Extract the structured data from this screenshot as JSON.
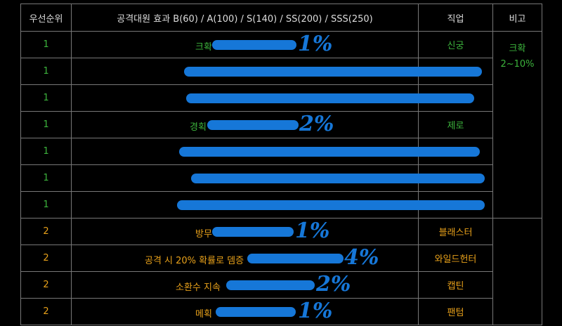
{
  "colors": {
    "background": "#000000",
    "grid": "#777777",
    "header_text": "#dddddd",
    "green": "#3cb33c",
    "orange": "#e8a11a",
    "redaction": "#1677d8"
  },
  "header": {
    "priority": "우선순위",
    "effect": "공격대원 효과 B(60) / A(100) / S(140) / SS(200) / SSS(250)",
    "job": "직업",
    "note": "비고"
  },
  "note": {
    "line1": "크확",
    "line2": "2~10%"
  },
  "rows": [
    {
      "priority": "1",
      "effect": "크확",
      "job": "신궁",
      "handwritten": "1%",
      "color": "green"
    },
    {
      "priority": "1",
      "effect": "",
      "job": "",
      "handwritten": "",
      "color": "green"
    },
    {
      "priority": "1",
      "effect": "",
      "job": "",
      "handwritten": "",
      "color": "green"
    },
    {
      "priority": "1",
      "effect": "경획",
      "job": "제로",
      "handwritten": "2%",
      "color": "green"
    },
    {
      "priority": "1",
      "effect": "",
      "job": "",
      "handwritten": "",
      "color": "green"
    },
    {
      "priority": "1",
      "effect": "",
      "job": "",
      "handwritten": "",
      "color": "green"
    },
    {
      "priority": "1",
      "effect": "",
      "job": "",
      "handwritten": "",
      "color": "green"
    },
    {
      "priority": "2",
      "effect": "방무",
      "job": "블래스터",
      "handwritten": "1%",
      "color": "orange"
    },
    {
      "priority": "2",
      "effect": "공격 시 20% 확률로 뎀증",
      "job": "와일드헌터",
      "handwritten": "4%",
      "color": "orange"
    },
    {
      "priority": "2",
      "effect": "소환수 지속",
      "job": "캡틴",
      "handwritten": "2%",
      "color": "orange"
    },
    {
      "priority": "2",
      "effect": "메획",
      "job": "팬텀",
      "handwritten": "1%",
      "color": "orange"
    }
  ]
}
